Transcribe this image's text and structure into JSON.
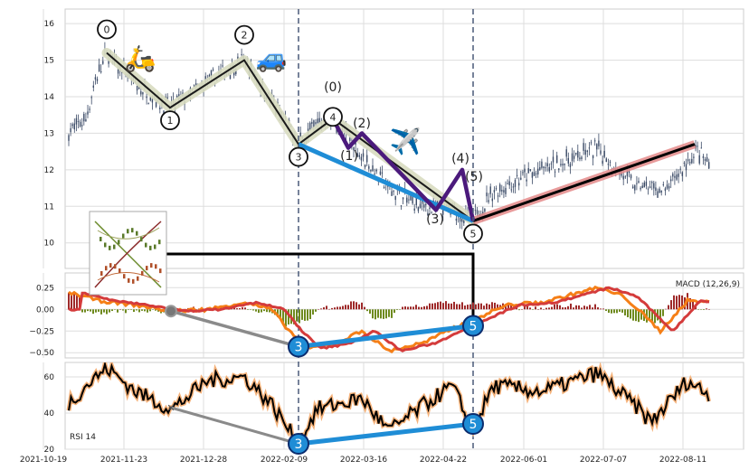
{
  "chart_data": {
    "type": "line",
    "x_ticks": [
      "2021-10-19",
      "2021-11-23",
      "2021-12-28",
      "2022-02-09",
      "2022-03-16",
      "2022-04-22",
      "2022-06-01",
      "2022-07-07",
      "2022-08-11"
    ],
    "price_panel": {
      "ylim": [
        9.3,
        16.4
      ],
      "y_ticks": [
        10,
        11,
        12,
        13,
        14,
        15,
        16
      ],
      "wave_labels": [
        "0",
        "1",
        "2",
        "3",
        "4",
        "5"
      ],
      "sub_wave_labels": [
        "(0)",
        "(1)",
        "(2)",
        "(3)",
        "(4)",
        "(5)"
      ],
      "impulse_wave_prices": [
        15.2,
        13.7,
        15.0,
        12.7,
        13.4,
        10.6
      ],
      "corrective_wave_prices": [
        13.4,
        12.6,
        13.0,
        10.9,
        12.0,
        10.6
      ],
      "trend_segments": [
        {
          "from": "3",
          "from_price": 12.7,
          "to": "5",
          "to_price": 10.6,
          "color": "#1f8dd6"
        },
        {
          "from": "5",
          "from_price": 10.6,
          "to": "end",
          "to_price": 12.7,
          "color": "#000000"
        }
      ],
      "emoji": [
        "🛵",
        "🚙",
        "✈️"
      ]
    },
    "macd_panel": {
      "label": "MACD (12,26,9)",
      "ylim": [
        -0.56,
        0.42
      ],
      "y_ticks": [
        0.25,
        0.0,
        -0.25,
        -0.5
      ],
      "y_tick_labels": [
        "0.25",
        "0.00",
        "−0.25",
        "−0.50"
      ],
      "divergence_labels": [
        "3",
        "5"
      ],
      "divergence_values": [
        -0.43,
        -0.19
      ]
    },
    "rsi_panel": {
      "label": "RSI 14",
      "ylim": [
        20,
        68
      ],
      "y_ticks": [
        20,
        40,
        60
      ],
      "divergence_labels": [
        "3",
        "5"
      ],
      "divergence_values": [
        23,
        34
      ]
    },
    "colors": {
      "candle": "#3a4a66",
      "wave_shadow": "#d8dcc0",
      "corrective": "#4b1a7c",
      "trend_blue": "#1f8dd6",
      "trend_pink": "#e48a8a",
      "macd_line": "#f57f17",
      "signal_line": "#d43b3b",
      "hist_pos": "#9e2a2a",
      "hist_neg": "#6e8a1e",
      "rsi_line": "#000000",
      "rsi_glow": "#f5b27a",
      "grid": "#dddddd",
      "vline": "#4a5a78"
    }
  }
}
